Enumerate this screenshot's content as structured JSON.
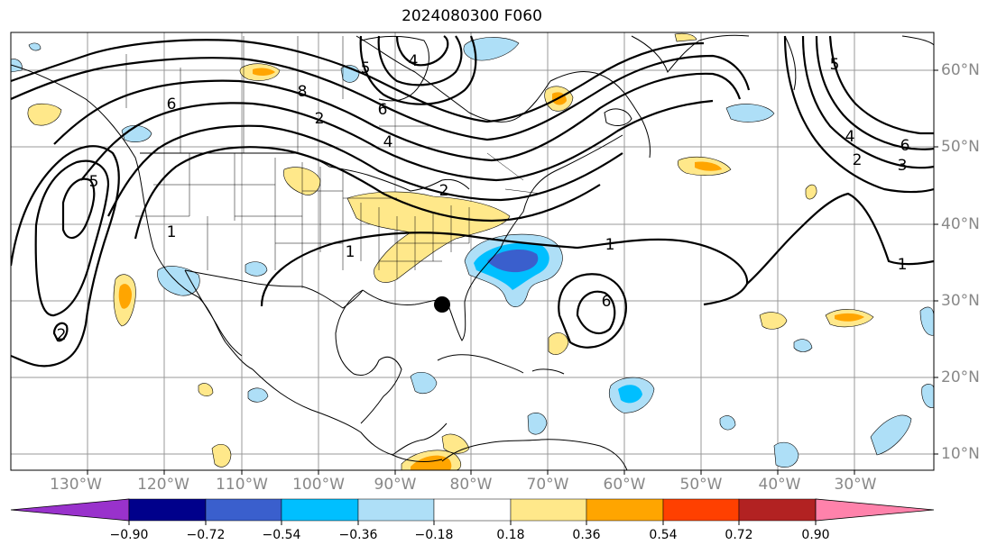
{
  "title": "2024080300 F060",
  "lon_labels": [
    "130°W",
    "120°W",
    "110°W",
    "100°W",
    "90°W",
    "80°W",
    "70°W",
    "60°W",
    "50°W",
    "40°W",
    "30°W"
  ],
  "lat_labels": [
    "60°N",
    "50°N",
    "40°N",
    "30°N",
    "20°N",
    "10°N"
  ],
  "contour_labels": [
    "5",
    "4",
    "6",
    "8",
    "6",
    "4",
    "5",
    "1",
    "2",
    "6",
    "5",
    "4",
    "2",
    "3",
    "6",
    "1",
    "1",
    "1",
    "2",
    "2"
  ],
  "colorbar": {
    "ticks": [
      "−0.90",
      "−0.72",
      "−0.54",
      "−0.36",
      "−0.18",
      "0.18",
      "0.36",
      "0.54",
      "0.72",
      "0.90"
    ],
    "colors": [
      "#9932cc",
      "#00008b",
      "#3a5fcd",
      "#00bfff",
      "#aedff7",
      "#ffffff",
      "#ffe88a",
      "#ffa500",
      "#ff4000",
      "#b22222",
      "#ff82ab"
    ]
  },
  "marker": "black-dot"
}
